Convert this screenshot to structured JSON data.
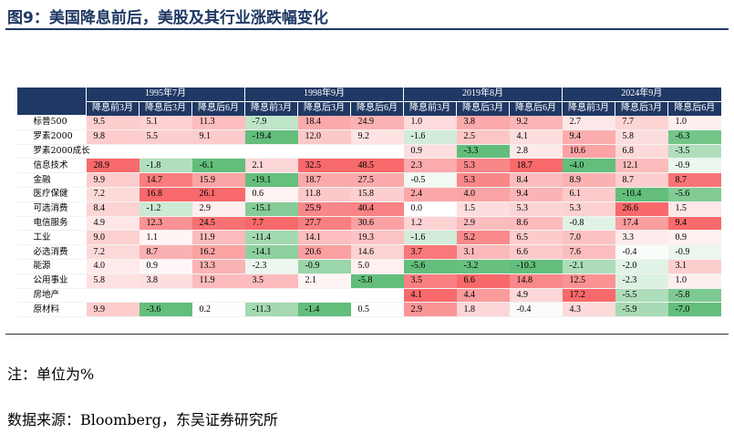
{
  "title": "图9：美国降息前后，美股及其行业涨跌幅变化",
  "table": {
    "label_header": "",
    "periods": [
      "1995年7月",
      "1998年9月",
      "2019年8月",
      "2024年9月"
    ],
    "sub_headers": [
      "降息前3月",
      "降息后3月",
      "降息后6月"
    ],
    "rows": [
      {
        "label": "标普500",
        "values": [
          "9.5",
          "5.1",
          "11.3",
          "-7.9",
          "18.4",
          "24.9",
          "1.0",
          "3.8",
          "9.2",
          "2.7",
          "7.7",
          "1.0"
        ]
      },
      {
        "label": "罗素2000",
        "values": [
          "9.8",
          "5.5",
          "9.1",
          "-19.4",
          "12.0",
          "9.2",
          "-1.6",
          "2.5",
          "4.1",
          "9.4",
          "5.8",
          "-6.3"
        ]
      },
      {
        "label": "罗素2000成长",
        "values": [
          "",
          "",
          "",
          "",
          "",
          "",
          "0.9",
          "-3.3",
          "2.8",
          "10.6",
          "6.8",
          "-3.5"
        ]
      },
      {
        "label": "信息技术",
        "values": [
          "28.9",
          "-1.8",
          "-6.1",
          "2.1",
          "32.5",
          "48.5",
          "2.3",
          "5.3",
          "18.7",
          "-4.0",
          "12.1",
          "-0.9"
        ]
      },
      {
        "label": "金融",
        "values": [
          "9.9",
          "14.7",
          "15.9",
          "-19.1",
          "18.7",
          "27.5",
          "-0.5",
          "5.3",
          "8.4",
          "8.9",
          "8.7",
          "8.7"
        ]
      },
      {
        "label": "医疗保健",
        "values": [
          "7.2",
          "16.8",
          "26.1",
          "0.6",
          "11.8",
          "15.8",
          "2.4",
          "4.0",
          "9.4",
          "6.1",
          "-10.4",
          "-5.6"
        ]
      },
      {
        "label": "可选消费",
        "values": [
          "8.4",
          "-1.2",
          "2.9",
          "-15.1",
          "25.9",
          "40.4",
          "0.0",
          "1.5",
          "5.3",
          "5.3",
          "26.6",
          "1.5"
        ]
      },
      {
        "label": "电信服务",
        "values": [
          "4.9",
          "12.3",
          "24.5",
          "7.7",
          "27.7",
          "30.6",
          "1.2",
          "2.9",
          "8.6",
          "-0.8",
          "17.4",
          "9.4"
        ]
      },
      {
        "label": "工业",
        "values": [
          "9.0",
          "1.1",
          "11.9",
          "-11.4",
          "14.1",
          "19.3",
          "-1.6",
          "5.2",
          "6.5",
          "7.0",
          "3.3",
          "0.9"
        ]
      },
      {
        "label": "必选消费",
        "values": [
          "7.2",
          "8.7",
          "16.2",
          "-14.1",
          "20.6",
          "14.6",
          "3.7",
          "3.1",
          "6.6",
          "7.6",
          "-0.4",
          "-0.9"
        ]
      },
      {
        "label": "能源",
        "values": [
          "4.0",
          "0.9",
          "13.3",
          "-2.3",
          "-0.9",
          "5.0",
          "-5.6",
          "-3.2",
          "-10.3",
          "-2.1",
          "-2.0",
          "3.1"
        ]
      },
      {
        "label": "公用事业",
        "values": [
          "5.8",
          "3.8",
          "11.9",
          "3.5",
          "2.1",
          "-5.8",
          "3.5",
          "6.6",
          "14.8",
          "12.5",
          "-2.3",
          "1.0"
        ]
      },
      {
        "label": "房地产",
        "values": [
          "",
          "",
          "",
          "",
          "",
          "",
          "4.1",
          "4.4",
          "4.9",
          "17.2",
          "-5.5",
          "-5.8"
        ]
      },
      {
        "label": "原材料",
        "values": [
          "9.9",
          "-3.6",
          "0.2",
          "-11.3",
          "-1.4",
          "0.5",
          "2.9",
          "1.8",
          "-0.4",
          "4.3",
          "-5.9",
          "-7.0"
        ]
      }
    ]
  },
  "colors": {
    "header_bg": "#1f3864",
    "header_text": "#ffffff",
    "positive_max": "#f8696b",
    "negative_max": "#63be7b",
    "neutral": "#ffffff"
  },
  "note": "注：单位为%",
  "source": "数据来源：Bloomberg，东吴证券研究所"
}
